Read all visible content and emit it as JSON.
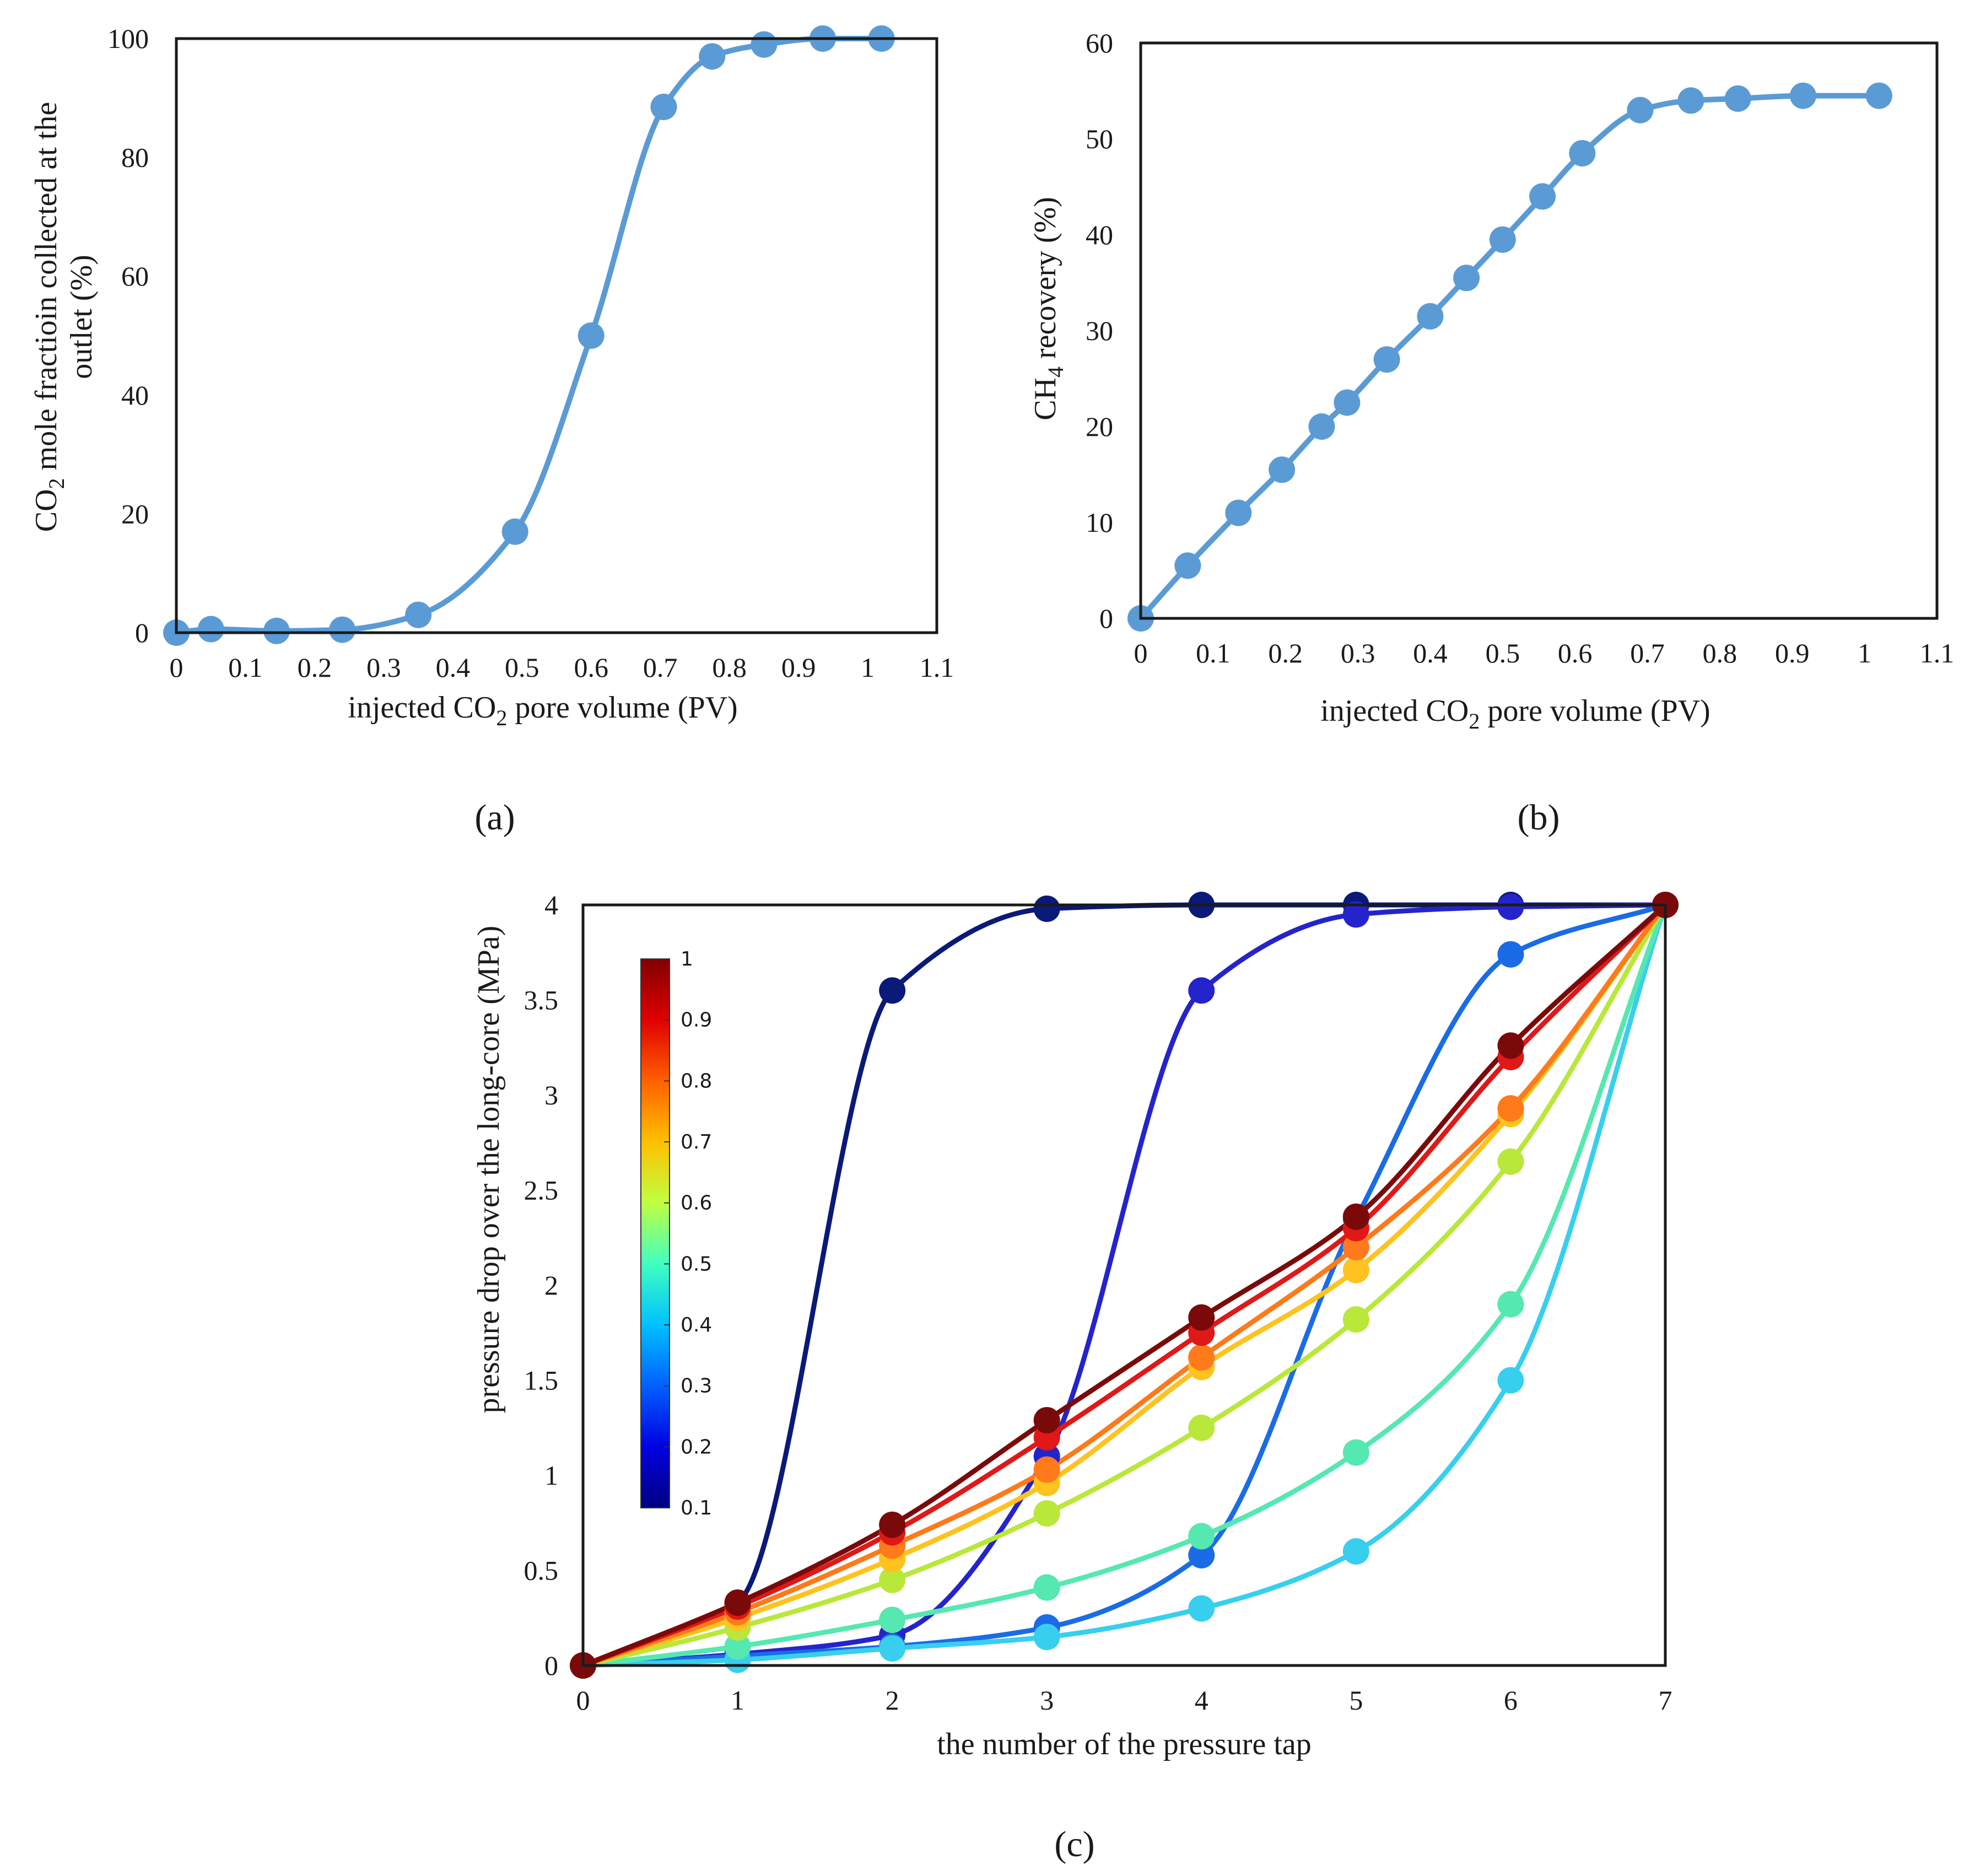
{
  "chart_data": [
    {
      "type": "line",
      "panel": "(a)",
      "title": "",
      "xlabel": {
        "pre": "injected CO",
        "sub": "2",
        "post": " pore volume (PV)"
      },
      "ylabel": {
        "line1_pre": "CO",
        "line1_sub": "2",
        "line1_post": " mole fractioin collected at the",
        "line2": "outlet (%)"
      },
      "xlim": [
        0,
        1.1
      ],
      "ylim": [
        0,
        100
      ],
      "xticks": [
        0,
        0.1,
        0.2,
        0.3,
        0.4,
        0.5,
        0.6,
        0.7,
        0.8,
        0.9,
        1,
        1.1
      ],
      "xtick_labels": [
        "0",
        "0.1",
        "0.2",
        "0.3",
        "0.4",
        "0.5",
        "0.6",
        "0.7",
        "0.8",
        "0.9",
        "1",
        "1.1"
      ],
      "yticks": [
        0,
        20,
        40,
        60,
        80,
        100
      ],
      "ytick_labels": [
        "0",
        "20",
        "40",
        "60",
        "80",
        "100"
      ],
      "series": [
        {
          "name": "CO2 mole fraction",
          "color": "#5b9bd5",
          "x": [
            0,
            0.05,
            0.145,
            0.24,
            0.35,
            0.49,
            0.6,
            0.705,
            0.775,
            0.85,
            0.935,
            1.02
          ],
          "y": [
            0,
            0.6,
            0.3,
            0.5,
            3,
            17,
            50,
            88.5,
            97,
            99,
            100,
            100
          ]
        }
      ]
    },
    {
      "type": "line",
      "panel": "(b)",
      "title": "",
      "xlabel": {
        "pre": "injected CO",
        "sub": "2",
        "post": " pore volume (PV)"
      },
      "ylabel": {
        "pre": "CH",
        "sub": "4",
        "post": "  recovery (%)"
      },
      "xlim": [
        0,
        1.1
      ],
      "ylim": [
        0,
        60
      ],
      "xticks": [
        0,
        0.1,
        0.2,
        0.3,
        0.4,
        0.5,
        0.6,
        0.7,
        0.8,
        0.9,
        1,
        1.1
      ],
      "xtick_labels": [
        "0",
        "0.1",
        "0.2",
        "0.3",
        "0.4",
        "0.5",
        "0.6",
        "0.7",
        "0.8",
        "0.9",
        "1",
        "1.1"
      ],
      "yticks": [
        0,
        10,
        20,
        30,
        40,
        50,
        60
      ],
      "ytick_labels": [
        "0",
        "10",
        "20",
        "30",
        "40",
        "50",
        "60"
      ],
      "series": [
        {
          "name": "CH4 recovery",
          "color": "#5b9bd5",
          "x": [
            0,
            0.065,
            0.135,
            0.195,
            0.25,
            0.285,
            0.34,
            0.4,
            0.45,
            0.5,
            0.555,
            0.61,
            0.69,
            0.76,
            0.825,
            0.915,
            1.02
          ],
          "y": [
            0,
            5.5,
            11,
            15.5,
            20,
            22.5,
            27,
            31.5,
            35.5,
            39.5,
            44,
            48.5,
            53,
            54,
            54.2,
            54.5,
            54.5
          ]
        }
      ]
    },
    {
      "type": "line",
      "panel": "(c)",
      "title": "",
      "xlabel": "the number of the pressure tap",
      "ylabel": "pressure drop over the long-core (MPa)",
      "xlim": [
        0,
        7
      ],
      "ylim": [
        0,
        4
      ],
      "xticks": [
        0,
        1,
        2,
        3,
        4,
        5,
        6,
        7
      ],
      "xtick_labels": [
        "0",
        "1",
        "2",
        "3",
        "4",
        "5",
        "6",
        "7"
      ],
      "yticks": [
        0,
        0.5,
        1,
        1.5,
        2,
        2.5,
        3,
        3.5,
        4
      ],
      "ytick_labels": [
        "0",
        "0.5",
        "1",
        "1.5",
        "2",
        "2.5",
        "3",
        "3.5",
        "4"
      ],
      "colorbar": {
        "range": [
          0.1,
          1
        ],
        "ticks": [
          "0.1",
          "0.2",
          "0.3",
          "0.4",
          "0.5",
          "0.6",
          "0.7",
          "0.8",
          "0.9",
          "1"
        ],
        "colors": [
          "#000080",
          "#0000e0",
          "#0060ff",
          "#00c0ff",
          "#40ffc0",
          "#c0ff40",
          "#ffc000",
          "#ff6000",
          "#e00000",
          "#800000"
        ]
      },
      "x": [
        0,
        1,
        2,
        3,
        4,
        5,
        6,
        7
      ],
      "series": [
        {
          "name": "0.1",
          "color": "#0a1a78",
          "y": [
            0,
            0.33,
            3.55,
            3.98,
            4.0,
            4.0,
            4.0,
            4.0
          ]
        },
        {
          "name": "0.2",
          "color": "#2424cc",
          "y": [
            0,
            0.06,
            0.16,
            1.1,
            3.55,
            3.95,
            3.99,
            4.0
          ]
        },
        {
          "name": "0.3",
          "color": "#1a6ce6",
          "y": [
            0,
            0.05,
            0.1,
            0.2,
            0.58,
            2.35,
            3.74,
            4.0
          ]
        },
        {
          "name": "0.4",
          "color": "#38cfee",
          "y": [
            0,
            0.03,
            0.09,
            0.15,
            0.3,
            0.6,
            1.5,
            4.0
          ]
        },
        {
          "name": "0.5",
          "color": "#55e8b0",
          "y": [
            0,
            0.1,
            0.24,
            0.41,
            0.68,
            1.12,
            1.9,
            4.0
          ]
        },
        {
          "name": "0.6",
          "color": "#b9e83a",
          "y": [
            0,
            0.2,
            0.45,
            0.8,
            1.25,
            1.82,
            2.65,
            4.0
          ]
        },
        {
          "name": "0.7",
          "color": "#ffc21e",
          "y": [
            0,
            0.25,
            0.56,
            0.96,
            1.57,
            2.08,
            2.9,
            4.0
          ]
        },
        {
          "name": "0.8",
          "color": "#ff7a1a",
          "y": [
            0,
            0.28,
            0.63,
            1.03,
            1.62,
            2.2,
            2.93,
            4.0
          ]
        },
        {
          "name": "0.9",
          "color": "#e01818",
          "y": [
            0,
            0.31,
            0.7,
            1.2,
            1.75,
            2.3,
            3.2,
            4.0
          ]
        },
        {
          "name": "1",
          "color": "#7a0a0a",
          "y": [
            0,
            0.33,
            0.74,
            1.29,
            1.83,
            2.36,
            3.26,
            4.0
          ]
        }
      ]
    }
  ]
}
